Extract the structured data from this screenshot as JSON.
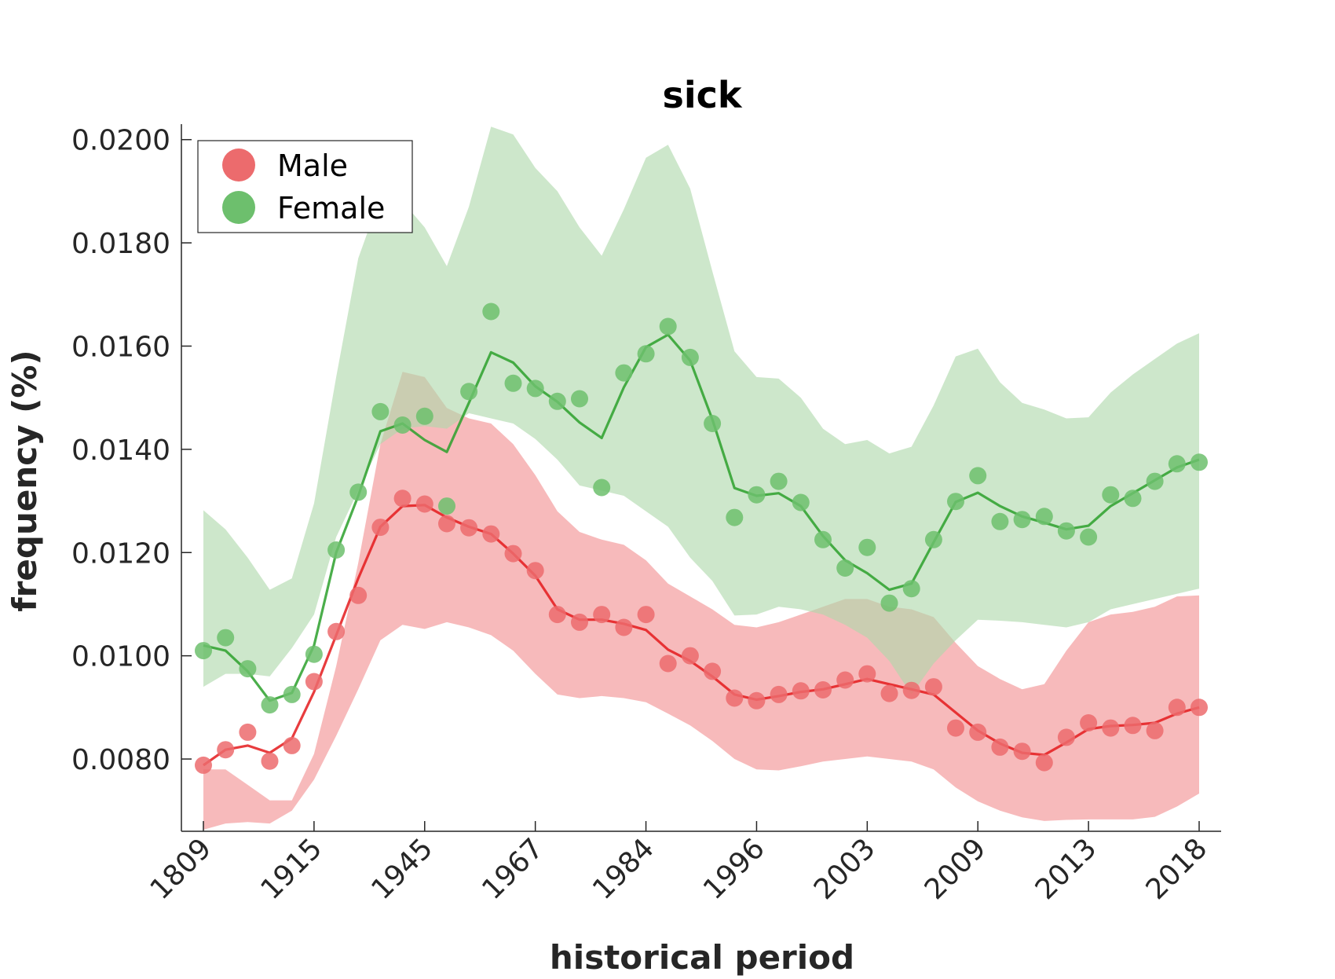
{
  "chart_data": {
    "type": "line",
    "title": "sick",
    "xlabel": "historical period",
    "ylabel": "frequency (%)",
    "ylim": [
      0.0066,
      0.0203
    ],
    "y_ticks": [
      "0.0080",
      "0.0100",
      "0.0120",
      "0.0140",
      "0.0160",
      "0.0180",
      "0.0200"
    ],
    "y_tick_values": [
      0.008,
      0.01,
      0.012,
      0.014,
      0.016,
      0.018,
      0.02
    ],
    "x_tick_labels": [
      "1809",
      "1915",
      "1945",
      "1967",
      "1984",
      "1996",
      "2003",
      "2009",
      "2013",
      "2018"
    ],
    "x_tick_indices": [
      0,
      5,
      10,
      15,
      20,
      25,
      30,
      35,
      40,
      45
    ],
    "legend_position": "top-left",
    "grid": false,
    "series": [
      {
        "name": "Male",
        "color": "#e41a1c",
        "marker_color": "#ec6b6d",
        "band_color": "#f4a3a4",
        "points": [
          0.00788,
          0.00818,
          0.00852,
          0.00796,
          0.00826,
          0.0095,
          0.01047,
          0.01117,
          0.01249,
          0.01305,
          0.01294,
          0.01256,
          0.01248,
          0.01236,
          0.01198,
          0.01165,
          0.0108,
          0.01065,
          0.0108,
          0.01055,
          0.0108,
          0.00985,
          0.01,
          0.0097,
          0.00918,
          0.00913,
          0.00925,
          0.00932,
          0.00934,
          0.00953,
          0.00965,
          0.00927,
          0.00933,
          0.0094,
          0.0086,
          0.00852,
          0.00823,
          0.00815,
          0.00793,
          0.00842,
          0.0087,
          0.0086,
          0.00865,
          0.00855,
          0.009,
          0.009
        ],
        "line": [
          0.00788,
          0.00818,
          0.00826,
          0.00812,
          0.0084,
          0.0093,
          0.0104,
          0.0115,
          0.0125,
          0.0129,
          0.01292,
          0.01268,
          0.0125,
          0.01236,
          0.01198,
          0.01155,
          0.0109,
          0.0107,
          0.0107,
          0.01062,
          0.0105,
          0.01012,
          0.0099,
          0.0096,
          0.00925,
          0.00915,
          0.00922,
          0.0093,
          0.00935,
          0.00945,
          0.00955,
          0.00945,
          0.00935,
          0.00925,
          0.0089,
          0.00855,
          0.0083,
          0.00812,
          0.00808,
          0.00832,
          0.00858,
          0.00864,
          0.00866,
          0.0087,
          0.00888,
          0.009
        ],
        "upper": [
          0.0078,
          0.0078,
          0.0075,
          0.0072,
          0.0072,
          0.0081,
          0.0098,
          0.0118,
          0.0141,
          0.0155,
          0.0154,
          0.0148,
          0.0146,
          0.0145,
          0.0141,
          0.0135,
          0.0128,
          0.0124,
          0.01225,
          0.01215,
          0.01185,
          0.0114,
          0.01115,
          0.0109,
          0.0106,
          0.01055,
          0.01065,
          0.0108,
          0.01095,
          0.0111,
          0.0111,
          0.01095,
          0.0109,
          0.01075,
          0.01025,
          0.0098,
          0.00955,
          0.00935,
          0.00945,
          0.0101,
          0.01065,
          0.0108,
          0.01085,
          0.01095,
          0.01115,
          0.01117
        ],
        "lower": [
          0.00663,
          0.00675,
          0.00678,
          0.00675,
          0.007,
          0.0076,
          0.00845,
          0.00935,
          0.0103,
          0.0106,
          0.01052,
          0.01065,
          0.01055,
          0.0104,
          0.0101,
          0.00965,
          0.00925,
          0.00918,
          0.00922,
          0.00918,
          0.0091,
          0.00888,
          0.00865,
          0.00835,
          0.008,
          0.0078,
          0.00778,
          0.00786,
          0.00795,
          0.008,
          0.00805,
          0.008,
          0.00795,
          0.0078,
          0.00745,
          0.00718,
          0.007,
          0.00687,
          0.0068,
          0.00682,
          0.00683,
          0.00683,
          0.00683,
          0.00688,
          0.00708,
          0.00733
        ]
      },
      {
        "name": "Female",
        "color": "#2ca02c",
        "marker_color": "#6dbf6d",
        "band_color": "#afd9ab",
        "points": [
          0.0101,
          0.01035,
          0.00975,
          0.00905,
          0.00925,
          0.01003,
          0.01205,
          0.01317,
          0.01473,
          0.01447,
          0.01464,
          0.0129,
          0.01512,
          0.01667,
          0.01528,
          0.01518,
          0.01493,
          0.01498,
          0.01326,
          0.01548,
          0.01585,
          0.01638,
          0.01578,
          0.0145,
          0.01268,
          0.01312,
          0.01338,
          0.01297,
          0.01225,
          0.0117,
          0.0121,
          0.01102,
          0.0113,
          0.01225,
          0.01299,
          0.01349,
          0.0126,
          0.01264,
          0.0127,
          0.01242,
          0.0123,
          0.01312,
          0.01305,
          0.01338,
          0.01372,
          0.01375
        ],
        "line": [
          0.0102,
          0.0101,
          0.0097,
          0.00913,
          0.00928,
          0.0102,
          0.012,
          0.0131,
          0.01435,
          0.0145,
          0.01418,
          0.01395,
          0.0149,
          0.01588,
          0.01568,
          0.01522,
          0.01492,
          0.01452,
          0.01422,
          0.0152,
          0.01598,
          0.01622,
          0.01572,
          0.01458,
          0.01325,
          0.0131,
          0.01315,
          0.0129,
          0.01232,
          0.01185,
          0.0116,
          0.01128,
          0.0114,
          0.0122,
          0.01298,
          0.01316,
          0.0129,
          0.0127,
          0.01258,
          0.01245,
          0.01252,
          0.0129,
          0.01315,
          0.0134,
          0.01365,
          0.0138
        ],
        "lower": [
          0.0094,
          0.00965,
          0.00965,
          0.0096,
          0.01015,
          0.0108,
          0.0123,
          0.0132,
          0.0141,
          0.0144,
          0.01445,
          0.0144,
          0.0147,
          0.0146,
          0.0145,
          0.0142,
          0.0138,
          0.0133,
          0.0132,
          0.0131,
          0.0128,
          0.0125,
          0.0119,
          0.01145,
          0.01078,
          0.0108,
          0.01095,
          0.0109,
          0.0108,
          0.0106,
          0.01035,
          0.0099,
          0.00925,
          0.00985,
          0.0103,
          0.0107,
          0.01068,
          0.01065,
          0.0106,
          0.01055,
          0.01065,
          0.0109,
          0.011,
          0.0111,
          0.0112,
          0.0113
        ],
        "upper": [
          0.01282,
          0.01245,
          0.0119,
          0.01128,
          0.0115,
          0.01295,
          0.0154,
          0.0177,
          0.0189,
          0.0188,
          0.0183,
          0.01755,
          0.0187,
          0.02025,
          0.0201,
          0.01945,
          0.019,
          0.0183,
          0.01775,
          0.01865,
          0.01965,
          0.0199,
          0.01905,
          0.01745,
          0.0159,
          0.0154,
          0.01537,
          0.015,
          0.0144,
          0.0141,
          0.01418,
          0.01392,
          0.01405,
          0.01485,
          0.0158,
          0.01595,
          0.0153,
          0.0149,
          0.01477,
          0.0146,
          0.01462,
          0.0151,
          0.01545,
          0.01575,
          0.01605,
          0.01625
        ]
      }
    ]
  }
}
